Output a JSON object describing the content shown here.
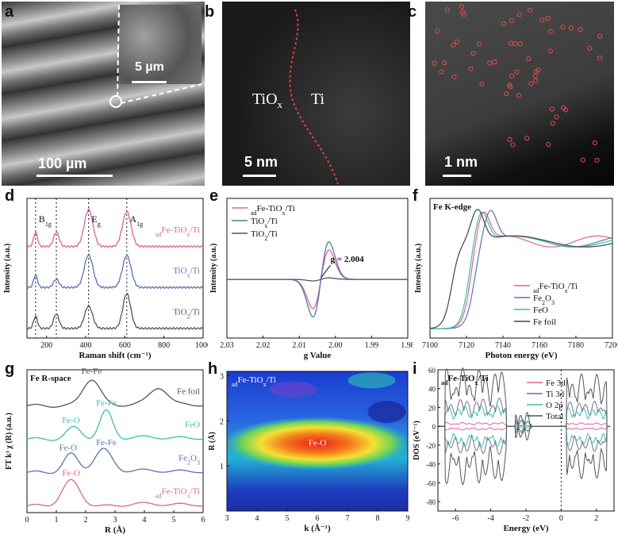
{
  "panels": {
    "a": {
      "letter": "a",
      "scale_main": "100 µm",
      "scale_inset": "5 µm"
    },
    "b": {
      "letter": "b",
      "label_left": "TiO",
      "label_left_sub": "x",
      "label_right": "Ti",
      "scale": "5 nm"
    },
    "c": {
      "letter": "c",
      "scale": "1 nm"
    },
    "d": {
      "letter": "d"
    },
    "e": {
      "letter": "e"
    },
    "f": {
      "letter": "f"
    },
    "g": {
      "letter": "g"
    },
    "h": {
      "letter": "h"
    },
    "i": {
      "letter": "i"
    }
  },
  "chart_data": [
    {
      "panel": "d",
      "type": "line",
      "xlabel": "Raman shift (cm⁻¹)",
      "ylabel": "Intensity (a.u.)",
      "xlim": [
        100,
        1000
      ],
      "xticks": [
        200,
        400,
        600,
        800,
        1000
      ],
      "peak_lines": [
        144,
        250,
        415,
        610
      ],
      "peak_labels": [
        {
          "text": "B",
          "sub": "1g",
          "x": 160
        },
        {
          "text": "E",
          "sub": "g",
          "x": 430
        },
        {
          "text": "A",
          "sub": "1g",
          "x": 625
        }
      ],
      "series": [
        {
          "name_prefix": "ad",
          "name": "Fe-TiO",
          "name_sub": "x",
          "name_suffix": "/Ti",
          "color": "#e0609a",
          "offset": 2.0,
          "peaks": [
            [
              144,
              0.35,
              10
            ],
            [
              250,
              0.35,
              14
            ],
            [
              415,
              0.9,
              22
            ],
            [
              610,
              0.85,
              22
            ]
          ]
        },
        {
          "name": "TiO",
          "name_sub": "x",
          "name_suffix": "/Ti",
          "color": "#5a74b0",
          "offset": 1.0,
          "peaks": [
            [
              144,
              0.3,
              10
            ],
            [
              250,
              0.2,
              14
            ],
            [
              415,
              0.8,
              22
            ],
            [
              610,
              0.78,
              22
            ]
          ]
        },
        {
          "name": "TiO",
          "name_sub": "2",
          "name_suffix": "/Ti",
          "color": "#555555",
          "offset": 0.0,
          "peaks": [
            [
              144,
              0.3,
              10
            ],
            [
              250,
              0.35,
              14
            ],
            [
              415,
              0.55,
              20
            ],
            [
              610,
              0.85,
              20
            ]
          ]
        }
      ]
    },
    {
      "panel": "e",
      "type": "line",
      "xlabel": "g Value",
      "ylabel": "Intensity (a.u.)",
      "xlim": [
        2.03,
        1.98
      ],
      "xticks": [
        2.03,
        2.02,
        2.01,
        2.0,
        1.99,
        1.98
      ],
      "annotation": "g = 2.004",
      "series": [
        {
          "name_prefix": "ad",
          "name": "Fe-TiO",
          "name_sub": "x",
          "name_suffix": "/Ti",
          "color": "#e0609a",
          "amp": 0.78
        },
        {
          "name": "TiO",
          "name_sub": "x",
          "name_suffix": "/Ti",
          "color": "#5a74b0",
          "amp": 1.0
        },
        {
          "name": "TiO",
          "name_sub": "2",
          "name_suffix": "/Ti",
          "color": "#555555",
          "amp": 0.04
        }
      ]
    },
    {
      "panel": "f",
      "type": "line",
      "title": "Fe K-edge",
      "xlabel": "Photon energy (eV)",
      "ylabel": "Intensity (a.u.)",
      "xlim": [
        7100,
        7200
      ],
      "xticks": [
        7100,
        7120,
        7140,
        7160,
        7180,
        7200
      ],
      "series": [
        {
          "name_prefix": "ad",
          "name": "Fe-TiO",
          "name_sub": "x",
          "name_suffix": "/Ti",
          "color": "#e0609a",
          "edge": 7122,
          "peak": 7129
        },
        {
          "name": "Fe",
          "name_sub": "2",
          "name_mid": "O",
          "name_sub2": "3",
          "color": "#5a74b0",
          "edge": 7124,
          "peak": 7133
        },
        {
          "name": "FeO",
          "color": "#3fbfa5",
          "edge": 7121,
          "peak": 7128
        },
        {
          "name": "Fe foil",
          "color": "#444444",
          "edge": 7112,
          "peak": 7126
        }
      ]
    },
    {
      "panel": "g",
      "type": "line",
      "title": "Fe R-space",
      "xlabel": "R (Å)",
      "ylabel": "FT k³ χ (R) (a.u.)",
      "xlim": [
        0,
        6
      ],
      "xticks": [
        0,
        1,
        2,
        3,
        4,
        5,
        6
      ],
      "series": [
        {
          "name": "Fe foil",
          "color": "#555555",
          "offset": 3.0,
          "peaks": [
            [
              2.2,
              0.8,
              0.3
            ],
            [
              4.5,
              0.5,
              0.3
            ]
          ],
          "labels": [
            {
              "text": "Fe-Fe",
              "x": 2.2
            }
          ]
        },
        {
          "name": "FeO",
          "color": "#3fbfa5",
          "offset": 2.0,
          "peaks": [
            [
              1.6,
              0.35,
              0.25
            ],
            [
              2.7,
              0.85,
              0.22
            ]
          ],
          "labels": [
            {
              "text": "Fe-O",
              "x": 1.5
            },
            {
              "text": "Fe-Fe",
              "x": 2.7
            }
          ]
        },
        {
          "name": "Fe",
          "name_sub": "2",
          "name_mid": "O",
          "name_sub2": "3",
          "color": "#5a74b0",
          "offset": 1.0,
          "peaks": [
            [
              1.5,
              0.55,
              0.25
            ],
            [
              2.6,
              0.7,
              0.3
            ]
          ],
          "labels": [
            {
              "text": "Fe-O",
              "x": 1.4
            },
            {
              "text": "Fe-Fe",
              "x": 2.7
            }
          ]
        },
        {
          "name_prefix": "ad",
          "name": "Fe-TiO",
          "name_sub": "x",
          "name_suffix": "/Ti",
          "color": "#e0609a",
          "offset": 0.0,
          "peaks": [
            [
              1.5,
              0.75,
              0.3
            ]
          ],
          "labels": [
            {
              "text": "Fe-O",
              "x": 1.5
            }
          ]
        }
      ]
    },
    {
      "panel": "h",
      "type": "heatmap",
      "title_prefix": "ad",
      "title": "Fe-TiO",
      "title_sub": "x",
      "title_suffix": "/Ti",
      "xlabel": "k (Å⁻¹)",
      "ylabel": "R (Å)",
      "xlim": [
        3,
        9
      ],
      "ylim": [
        0,
        3.1
      ],
      "xticks": [
        3,
        4,
        5,
        6,
        7,
        8,
        9
      ],
      "yticks": [
        1,
        2,
        3
      ],
      "annotation": "Fe-O"
    },
    {
      "panel": "i",
      "type": "line",
      "title_prefix": "ad",
      "title": "Fe-TiO",
      "title_sub": "x",
      "title_suffix": "/Ti",
      "xlabel": "Energy (eV)",
      "ylabel": "DOS (eV⁻¹)",
      "xlim": [
        -7,
        3
      ],
      "ylim": [
        -90,
        60
      ],
      "xticks": [
        -6,
        -4,
        -2,
        0,
        2
      ],
      "yticks": [
        -80,
        -60,
        -40,
        -20,
        0,
        20,
        40,
        60
      ],
      "series": [
        {
          "name": "Fe 3d",
          "color": "#e0609a"
        },
        {
          "name": "Ti 3d",
          "color": "#7a6a9a"
        },
        {
          "name": "O  2p",
          "color": "#3fbfa5"
        },
        {
          "name": "Total",
          "color": "#555555"
        }
      ]
    }
  ]
}
